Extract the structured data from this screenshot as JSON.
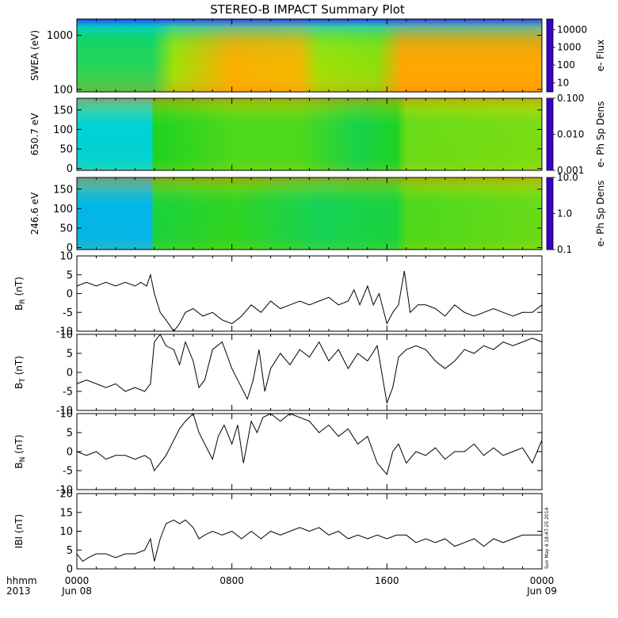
{
  "title": "STEREO-B IMPACT Summary Plot",
  "time_axis": {
    "label_line1": "hhmm",
    "label_line2": "2013",
    "ticks": [
      {
        "time": "0000",
        "date": "Jun 08",
        "hour": 0
      },
      {
        "time": "0800",
        "date": "",
        "hour": 8
      },
      {
        "time": "1600",
        "date": "",
        "hour": 16
      },
      {
        "time": "0000",
        "date": "Jun 09",
        "hour": 24
      }
    ],
    "minor_tick_hours": [
      1,
      2,
      3,
      4,
      5,
      6,
      7,
      9,
      10,
      11,
      12,
      13,
      14,
      15,
      17,
      18,
      19,
      20,
      21,
      22,
      23
    ]
  },
  "timestamp": "Sun May  4 18:47:25 2014",
  "colors": {
    "colorbar_low": "#3a00c8",
    "colorbar_mid": "#1ed21e",
    "colorbar_high": "#e61400",
    "trace": "#000000"
  },
  "chart_data": [
    {
      "type": "heatmap",
      "ylabel": "SWEA (eV)",
      "yscale": "log",
      "ylim": [
        90,
        2000
      ],
      "yticks": [
        "1000",
        "100"
      ],
      "ytick_values": [
        1000,
        100
      ],
      "colorbar": {
        "label": "e- Flux",
        "scale": "log",
        "range": [
          3,
          40000
        ],
        "ticks": [
          "10000",
          "1000",
          "100",
          "10"
        ],
        "tick_values": [
          10000,
          1000,
          100,
          10
        ]
      },
      "events": [
        {
          "hour": 3.9,
          "level": 0.45
        },
        {
          "hour": 5.0,
          "level": 0.62
        },
        {
          "hour": 8.0,
          "level": 0.8
        },
        {
          "hour": 11.5,
          "level": 0.78
        },
        {
          "hour": 12.5,
          "level": 0.62
        },
        {
          "hour": 15.5,
          "level": 0.6
        },
        {
          "hour": 16.8,
          "level": 0.82
        },
        {
          "hour": 24,
          "level": 0.82
        }
      ]
    },
    {
      "type": "heatmap",
      "ylabel": "650.7 eV",
      "ylim": [
        -5,
        180
      ],
      "yticks": [
        "150",
        "100",
        "50",
        "0"
      ],
      "ytick_values": [
        150,
        100,
        50,
        0
      ],
      "colorbar": {
        "label": "e- Ph Sp Dens",
        "scale": "log",
        "range": [
          0.001,
          0.1
        ],
        "ticks": [
          "0.100",
          "0.010",
          "0.001"
        ],
        "tick_values": [
          0.1,
          0.01,
          0.001
        ]
      },
      "events": [
        {
          "hour": 0,
          "level": 0.36
        },
        {
          "hour": 3.85,
          "level": 0.36
        },
        {
          "hour": 3.95,
          "level": 0.5
        },
        {
          "hour": 8.0,
          "level": 0.55
        },
        {
          "hour": 11.5,
          "level": 0.55
        },
        {
          "hour": 14.5,
          "level": 0.47
        },
        {
          "hour": 16.5,
          "level": 0.5
        },
        {
          "hour": 17.0,
          "level": 0.58
        },
        {
          "hour": 24,
          "level": 0.6
        }
      ]
    },
    {
      "type": "heatmap",
      "ylabel": "246.6 eV",
      "ylim": [
        -5,
        180
      ],
      "yticks": [
        "150",
        "100",
        "50",
        "0"
      ],
      "ytick_values": [
        150,
        100,
        50,
        0
      ],
      "colorbar": {
        "label": "e- Ph Sp Dens",
        "scale": "log",
        "range": [
          0.1,
          10
        ],
        "ticks": [
          "10.0",
          "1.0",
          "0.1"
        ],
        "tick_values": [
          10,
          1,
          0.1
        ]
      },
      "events": [
        {
          "hour": 0,
          "level": 0.3
        },
        {
          "hour": 3.85,
          "level": 0.3
        },
        {
          "hour": 3.95,
          "level": 0.48
        },
        {
          "hour": 8.0,
          "level": 0.52
        },
        {
          "hour": 12.5,
          "level": 0.46
        },
        {
          "hour": 16.5,
          "level": 0.48
        },
        {
          "hour": 17.0,
          "level": 0.55
        },
        {
          "hour": 24,
          "level": 0.58
        }
      ]
    },
    {
      "type": "line",
      "ylabel": "BR (nT)",
      "ylabel_main": "B",
      "ylabel_sub": "R",
      "ylabel_unit": "(nT)",
      "ylim": [
        -10,
        10
      ],
      "yticks": [
        "10",
        "5",
        "0",
        "-5",
        "-10"
      ],
      "ytick_values": [
        10,
        5,
        0,
        -5,
        -10
      ],
      "x": [
        0,
        0.5,
        1,
        1.5,
        2,
        2.5,
        3,
        3.3,
        3.6,
        3.8,
        4.0,
        4.3,
        4.6,
        5.0,
        5.3,
        5.6,
        6.0,
        6.5,
        7.0,
        7.5,
        8.0,
        8.5,
        9.0,
        9.5,
        10.0,
        10.5,
        11.0,
        11.5,
        12.0,
        12.5,
        13.0,
        13.5,
        14.0,
        14.3,
        14.6,
        15.0,
        15.3,
        15.6,
        16.0,
        16.3,
        16.6,
        16.9,
        17.2,
        17.6,
        18.0,
        18.5,
        19.0,
        19.5,
        20.0,
        20.5,
        21.0,
        21.5,
        22.0,
        22.5,
        23.0,
        23.5,
        24.0
      ],
      "y": [
        2,
        3,
        2,
        3,
        2,
        3,
        2,
        3,
        2,
        5,
        0,
        -5,
        -7,
        -10,
        -8,
        -5,
        -4,
        -6,
        -5,
        -7,
        -8,
        -6,
        -3,
        -5,
        -2,
        -4,
        -3,
        -2,
        -3,
        -2,
        -1,
        -3,
        -2,
        1,
        -3,
        2,
        -3,
        0,
        -8,
        -5,
        -3,
        6,
        -5,
        -3,
        -3,
        -4,
        -6,
        -3,
        -5,
        -6,
        -5,
        -4,
        -5,
        -6,
        -5,
        -5,
        -3
      ]
    },
    {
      "type": "line",
      "ylabel": "BT (nT)",
      "ylabel_main": "B",
      "ylabel_sub": "T",
      "ylabel_unit": "(nT)",
      "ylim": [
        -10,
        10
      ],
      "yticks": [
        "10",
        "5",
        "0",
        "-5",
        "-10"
      ],
      "ytick_values": [
        10,
        5,
        0,
        -5,
        -10
      ],
      "x": [
        0,
        0.5,
        1,
        1.5,
        2,
        2.5,
        3,
        3.5,
        3.8,
        4.0,
        4.3,
        4.6,
        5.0,
        5.3,
        5.6,
        6.0,
        6.3,
        6.6,
        7.0,
        7.5,
        8.0,
        8.5,
        8.8,
        9.1,
        9.4,
        9.7,
        10.0,
        10.5,
        11.0,
        11.5,
        12.0,
        12.5,
        13.0,
        13.5,
        14.0,
        14.5,
        15.0,
        15.5,
        16.0,
        16.3,
        16.6,
        17.0,
        17.5,
        18.0,
        18.5,
        19.0,
        19.5,
        20.0,
        20.5,
        21.0,
        21.5,
        22.0,
        22.5,
        23.0,
        23.5,
        24.0
      ],
      "y": [
        -3,
        -2,
        -3,
        -4,
        -3,
        -5,
        -4,
        -5,
        -3,
        8,
        10,
        7,
        6,
        2,
        8,
        3,
        -4,
        -2,
        6,
        8,
        1,
        -4,
        -7,
        -2,
        6,
        -5,
        1,
        5,
        2,
        6,
        4,
        8,
        3,
        6,
        1,
        5,
        3,
        7,
        -8,
        -4,
        4,
        6,
        7,
        6,
        3,
        1,
        3,
        6,
        5,
        7,
        6,
        8,
        7,
        8,
        9,
        8
      ]
    },
    {
      "type": "line",
      "ylabel": "BN (nT)",
      "ylabel_main": "B",
      "ylabel_sub": "N",
      "ylabel_unit": "(nT)",
      "ylim": [
        -10,
        10
      ],
      "yticks": [
        "10",
        "5",
        "0",
        "-5",
        "-10"
      ],
      "ytick_values": [
        10,
        5,
        0,
        -5,
        -10
      ],
      "x": [
        0,
        0.5,
        1,
        1.5,
        2,
        2.5,
        3,
        3.5,
        3.8,
        4.0,
        4.3,
        4.6,
        5.0,
        5.3,
        5.6,
        6.0,
        6.3,
        6.6,
        7.0,
        7.3,
        7.6,
        8.0,
        8.3,
        8.6,
        9.0,
        9.3,
        9.6,
        10.0,
        10.5,
        11.0,
        11.5,
        12.0,
        12.5,
        13.0,
        13.5,
        14.0,
        14.5,
        15.0,
        15.5,
        16.0,
        16.3,
        16.6,
        17.0,
        17.5,
        18.0,
        18.5,
        19.0,
        19.5,
        20.0,
        20.5,
        21.0,
        21.5,
        22.0,
        22.5,
        23.0,
        23.5,
        24.0
      ],
      "y": [
        0,
        -1,
        0,
        -2,
        -1,
        -1,
        -2,
        -1,
        -2,
        -5,
        -3,
        -1,
        3,
        6,
        8,
        10,
        5,
        2,
        -2,
        4,
        7,
        2,
        7,
        -3,
        8,
        5,
        9,
        10,
        8,
        10,
        9,
        8,
        5,
        7,
        4,
        6,
        2,
        4,
        -3,
        -6,
        0,
        2,
        -3,
        0,
        -1,
        1,
        -2,
        0,
        0,
        2,
        -1,
        1,
        -1,
        0,
        1,
        -3,
        3
      ]
    },
    {
      "type": "line",
      "ylabel": "|B| (nT)",
      "ylabel_main": "IBI",
      "ylabel_sub": "",
      "ylabel_unit": "(nT)",
      "ylim": [
        0,
        20
      ],
      "yticks": [
        "20",
        "15",
        "10",
        "5",
        "0"
      ],
      "ytick_values": [
        20,
        15,
        10,
        5,
        0
      ],
      "x": [
        0,
        0.3,
        0.6,
        1,
        1.5,
        2,
        2.5,
        3,
        3.5,
        3.8,
        4.0,
        4.3,
        4.6,
        5.0,
        5.3,
        5.6,
        6.0,
        6.3,
        6.6,
        7.0,
        7.5,
        8.0,
        8.5,
        9.0,
        9.5,
        10.0,
        10.5,
        11.0,
        11.5,
        12.0,
        12.5,
        13.0,
        13.5,
        14.0,
        14.5,
        15.0,
        15.5,
        16.0,
        16.5,
        17.0,
        17.5,
        18.0,
        18.5,
        19.0,
        19.5,
        20.0,
        20.5,
        21.0,
        21.5,
        22.0,
        22.5,
        23.0,
        23.5,
        24.0
      ],
      "y": [
        4,
        2,
        3,
        4,
        4,
        3,
        4,
        4,
        5,
        8,
        2,
        8,
        12,
        13,
        12,
        13,
        11,
        8,
        9,
        10,
        9,
        10,
        8,
        10,
        8,
        10,
        9,
        10,
        11,
        10,
        11,
        9,
        10,
        8,
        9,
        8,
        9,
        8,
        9,
        9,
        7,
        8,
        7,
        8,
        6,
        7,
        8,
        6,
        8,
        7,
        8,
        9,
        9,
        9
      ]
    }
  ]
}
